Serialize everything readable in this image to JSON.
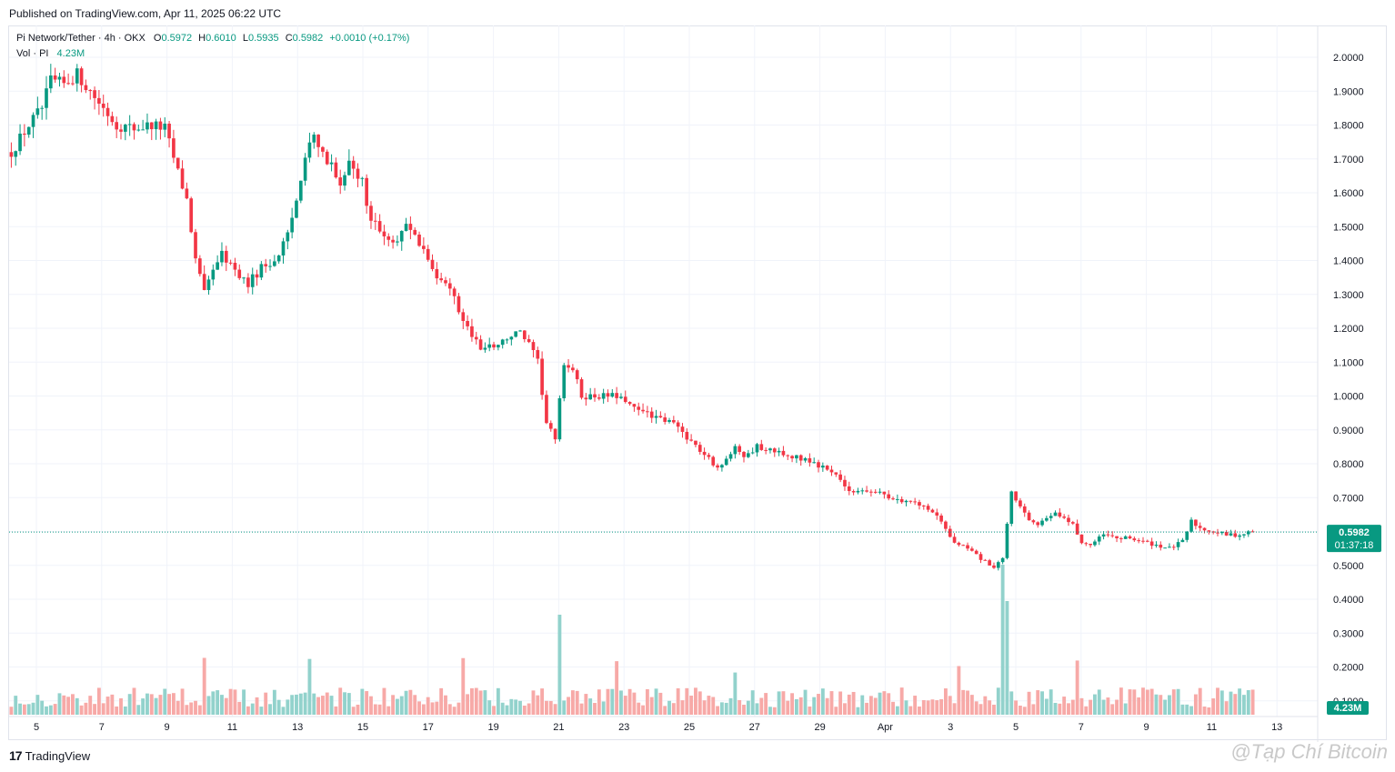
{
  "published": "Published on TradingView.com, Apr 11, 2025 06:22 UTC",
  "legend": {
    "symbol": "Pi Network/Tether · 4h · OKX",
    "o_label": "O",
    "o": "0.5972",
    "h_label": "H",
    "h": "0.6010",
    "l_label": "L",
    "l": "0.5935",
    "c_label": "C",
    "c": "0.5982",
    "change": "+0.0010 (+0.17%)",
    "vol_label": "Vol · PI",
    "vol": "4.23M"
  },
  "price_tag": {
    "price": "0.5982",
    "countdown": "01:37:18"
  },
  "volume_tag": "4.23M",
  "brand": "TradingView",
  "watermark": "@Tạp Chí Bitcoin",
  "colors": {
    "up": "#089981",
    "down": "#f23645",
    "up_vol": "#92d2cc",
    "down_vol": "#f7a9a7",
    "grid": "#f0f3fa",
    "axis_text": "#131722"
  },
  "chart_data": {
    "type": "candlestick",
    "x_tick_labels": [
      "5",
      "7",
      "9",
      "11",
      "13",
      "15",
      "17",
      "19",
      "21",
      "23",
      "25",
      "27",
      "29",
      "Apr",
      "3",
      "5",
      "7",
      "9",
      "11",
      "13"
    ],
    "y_tick_labels": [
      "2.0000",
      "1.9000",
      "1.8000",
      "1.7000",
      "1.6000",
      "1.5000",
      "1.4000",
      "1.3000",
      "1.2000",
      "1.1000",
      "1.0000",
      "0.9000",
      "0.8000",
      "0.7000",
      "0.6000",
      "0.5000",
      "0.4000",
      "0.3000",
      "0.2000",
      "0.1000"
    ],
    "ylim": [
      0.07,
      2.07
    ],
    "grid": true,
    "last_price": 0.5982,
    "interval": "4h",
    "anchors": [
      [
        0,
        1.72
      ],
      [
        4,
        1.8
      ],
      [
        7,
        1.85
      ],
      [
        9,
        1.93
      ],
      [
        12,
        1.92
      ],
      [
        15,
        1.95
      ],
      [
        18,
        1.9
      ],
      [
        21,
        1.85
      ],
      [
        24,
        1.8
      ],
      [
        28,
        1.79
      ],
      [
        32,
        1.8
      ],
      [
        35,
        1.79
      ],
      [
        38,
        1.66
      ],
      [
        40,
        1.58
      ],
      [
        42,
        1.4
      ],
      [
        44,
        1.3
      ],
      [
        46,
        1.38
      ],
      [
        48,
        1.42
      ],
      [
        51,
        1.37
      ],
      [
        54,
        1.33
      ],
      [
        57,
        1.38
      ],
      [
        60,
        1.4
      ],
      [
        63,
        1.47
      ],
      [
        65,
        1.58
      ],
      [
        67,
        1.72
      ],
      [
        69,
        1.78
      ],
      [
        71,
        1.72
      ],
      [
        73,
        1.68
      ],
      [
        75,
        1.63
      ],
      [
        77,
        1.68
      ],
      [
        80,
        1.63
      ],
      [
        82,
        1.52
      ],
      [
        85,
        1.47
      ],
      [
        88,
        1.46
      ],
      [
        90,
        1.52
      ],
      [
        92,
        1.47
      ],
      [
        94,
        1.42
      ],
      [
        97,
        1.36
      ],
      [
        100,
        1.33
      ],
      [
        102,
        1.25
      ],
      [
        104,
        1.2
      ],
      [
        107,
        1.14
      ],
      [
        110,
        1.15
      ],
      [
        113,
        1.17
      ],
      [
        116,
        1.19
      ],
      [
        118,
        1.15
      ],
      [
        120,
        1.1
      ],
      [
        122,
        0.92
      ],
      [
        124,
        0.87
      ],
      [
        126,
        1.1
      ],
      [
        128,
        1.08
      ],
      [
        130,
        1.0
      ],
      [
        133,
        1.0
      ],
      [
        136,
        1.0
      ],
      [
        139,
        1.0
      ],
      [
        142,
        0.96
      ],
      [
        145,
        0.95
      ],
      [
        148,
        0.93
      ],
      [
        151,
        0.92
      ],
      [
        154,
        0.88
      ],
      [
        157,
        0.84
      ],
      [
        160,
        0.8
      ],
      [
        162,
        0.79
      ],
      [
        165,
        0.86
      ],
      [
        167,
        0.82
      ],
      [
        170,
        0.85
      ],
      [
        173,
        0.84
      ],
      [
        176,
        0.83
      ],
      [
        179,
        0.82
      ],
      [
        182,
        0.81
      ],
      [
        185,
        0.79
      ],
      [
        188,
        0.77
      ],
      [
        191,
        0.72
      ],
      [
        194,
        0.72
      ],
      [
        197,
        0.72
      ],
      [
        200,
        0.7
      ],
      [
        203,
        0.69
      ],
      [
        206,
        0.69
      ],
      [
        209,
        0.67
      ],
      [
        212,
        0.63
      ],
      [
        215,
        0.57
      ],
      [
        218,
        0.55
      ],
      [
        221,
        0.52
      ],
      [
        224,
        0.49
      ],
      [
        226,
        0.52
      ],
      [
        228,
        0.72
      ],
      [
        230,
        0.67
      ],
      [
        232,
        0.63
      ],
      [
        234,
        0.62
      ],
      [
        236,
        0.64
      ],
      [
        238,
        0.66
      ],
      [
        240,
        0.64
      ],
      [
        242,
        0.62
      ],
      [
        244,
        0.57
      ],
      [
        246,
        0.56
      ],
      [
        249,
        0.59
      ],
      [
        252,
        0.58
      ],
      [
        255,
        0.58
      ],
      [
        258,
        0.57
      ],
      [
        261,
        0.56
      ],
      [
        264,
        0.55
      ],
      [
        267,
        0.57
      ],
      [
        269,
        0.63
      ],
      [
        271,
        0.61
      ],
      [
        274,
        0.6
      ],
      [
        277,
        0.59
      ],
      [
        280,
        0.59
      ],
      [
        283,
        0.6
      ]
    ],
    "x_axis_start": "Mar 5, 2025",
    "x_axis_end": "Apr 13, 2025"
  }
}
